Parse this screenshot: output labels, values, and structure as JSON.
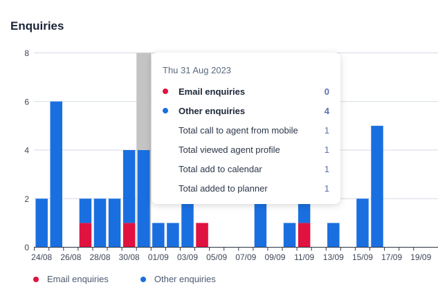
{
  "title": "Enquiries",
  "colors": {
    "email": "#e0123f",
    "other": "#1a6fe0",
    "highlight": "#c4c4c4"
  },
  "chart_data": {
    "type": "bar",
    "stacked": true,
    "categories": [
      "24/08",
      "25/08",
      "26/08",
      "27/08",
      "28/08",
      "29/08",
      "30/08",
      "31/08",
      "01/09",
      "02/09",
      "03/09",
      "04/09",
      "05/09",
      "06/09",
      "07/09",
      "08/09",
      "09/09",
      "10/09",
      "11/09",
      "12/09",
      "13/09",
      "14/09",
      "15/09",
      "16/09",
      "17/09",
      "18/09",
      "19/09"
    ],
    "tick_labels": [
      "24/08",
      "26/08",
      "28/08",
      "30/08",
      "01/09",
      "03/09",
      "05/09",
      "07/09",
      "09/09",
      "11/09",
      "13/09",
      "15/09",
      "17/09",
      "19/09"
    ],
    "series": [
      {
        "name": "Email enquiries",
        "values": [
          0,
          0,
          0,
          1,
          0,
          0,
          1,
          0,
          0,
          0,
          0,
          1,
          0,
          0,
          0,
          0,
          0,
          0,
          1,
          0,
          0,
          0,
          0,
          0,
          0,
          0,
          0
        ]
      },
      {
        "name": "Other enquiries",
        "values": [
          2,
          6,
          0,
          1,
          2,
          2,
          3,
          4,
          1,
          1,
          2,
          0,
          0,
          0,
          0,
          2,
          0,
          1,
          1,
          0,
          1,
          0,
          2,
          5,
          0,
          0,
          0
        ]
      }
    ],
    "yticks": [
      0,
      2,
      4,
      6,
      8
    ],
    "ylim": [
      0,
      8
    ],
    "grid": true,
    "highlight_category": "31/08",
    "legend_position": "bottom-left"
  },
  "tooltip": {
    "date": "Thu 31 Aug 2023",
    "rows": [
      {
        "label": "Email enquiries",
        "value": "0"
      },
      {
        "label": "Other enquiries",
        "value": "4"
      },
      {
        "label": "Total call to agent from mobile",
        "value": "1"
      },
      {
        "label": "Total viewed agent profile",
        "value": "1"
      },
      {
        "label": "Total add to calendar",
        "value": "1"
      },
      {
        "label": "Total added to planner",
        "value": "1"
      }
    ]
  },
  "legend": [
    {
      "label": "Email enquiries"
    },
    {
      "label": "Other enquiries"
    }
  ]
}
